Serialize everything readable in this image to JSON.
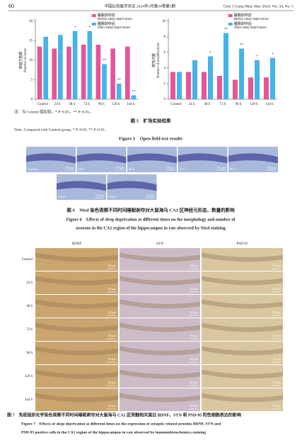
{
  "header": {
    "page_number": "60",
    "journal": "中国比较医学杂志 2024年5月第34卷第5期",
    "journal_en": "Chin J Comp Med, May 2024, Vol. 34, No. 5"
  },
  "chart_data": [
    {
      "type": "bar",
      "ylabel": "穿越方格数",
      "ylabel_en": "Number of times",
      "ylim": [
        0,
        20
      ],
      "yticks": [
        0,
        5,
        10,
        15,
        20
      ],
      "categories": [
        "Control",
        "24 h",
        "48 h",
        "72 h",
        "96 h",
        "120 h",
        "144 h"
      ],
      "series": [
        {
          "name": "睡眠剥夺前",
          "name_en": "Before sleep deprivation",
          "color": "#e5559a",
          "values": [
            13.5,
            13,
            13.5,
            14,
            14,
            13,
            13.5
          ]
        },
        {
          "name": "睡眠剥夺后",
          "name_en": "After sleep deprivation",
          "color": "#45b4e8",
          "values": [
            16,
            16.5,
            17.5,
            17.5,
            9,
            4,
            1
          ],
          "marks": [
            null,
            null,
            "*",
            "*",
            "**",
            "**",
            "**"
          ]
        }
      ]
    },
    {
      "type": "bar",
      "ylabel": "修饰次数",
      "ylabel_en": "Number of modifications",
      "ylim": [
        0,
        10
      ],
      "yticks": [
        0,
        2,
        4,
        6,
        8,
        10
      ],
      "categories": [
        "Control",
        "24 h",
        "48 h",
        "72 h",
        "96 h",
        "120 h",
        "144 h"
      ],
      "series": [
        {
          "name": "睡眠剥夺前",
          "name_en": "Before sleep deprivation",
          "color": "#e5559a",
          "values": [
            3.5,
            3.5,
            3.5,
            3,
            2.5,
            2.8,
            2.8
          ]
        },
        {
          "name": "睡眠剥夺后",
          "name_en": "After sleep deprivation",
          "color": "#45b4e8",
          "values": [
            3.5,
            5,
            5.5,
            8.5,
            6.5,
            5,
            5.3
          ],
          "marks": [
            null,
            null,
            "*",
            "**",
            "**",
            "*",
            "*"
          ]
        }
      ]
    }
  ],
  "fig5": {
    "note": "注：与 Control 组比较，* P<0.05，** P<0.01。",
    "caption": "图 5　旷场实验结果",
    "note_en": "Note. Compared with Control group, * P<0.05, ** P<0.01.",
    "caption_en": "Figure 5　Open field test results"
  },
  "fig6": {
    "panels": [
      "Control",
      "24 h",
      "48 h",
      "72 h",
      "96 h",
      "120 h",
      "144 h"
    ],
    "scale": "50 μm",
    "caption": "图 6　Nissl 染色观察不同时间睡眠剥夺对大鼠海马 CA1 区神经元形态、数量的影响",
    "caption_en": [
      "Figure 6　Effects of sleep deprivation at different times on the morphology and number of",
      "neurons in the CA1 region of the hippocampus in rats observed by Nissl staining"
    ]
  },
  "fig7": {
    "columns": [
      "BDNF",
      "SYN",
      "PSD-95"
    ],
    "rows": [
      "Control",
      "24 h",
      "48 h",
      "72 h",
      "96 h",
      "120 h",
      "144 h"
    ],
    "scale": "50 μm",
    "caption": "图 7　免疫组织化学染色观察不同时间睡眠剥夺对大鼠海马 CA1 区突触相关蛋白 BDNF、SYN 和 PSD-95 阳性细胞表达的影响",
    "caption_en": [
      "Figure 7　Effects of sleep deprivation at different times on the expression of synaptic related proteins BDNF, SYN and",
      "PSD-95 positive cells in the CA1 region of the hippocampus in rats observed by immunohistochemica staining"
    ]
  }
}
